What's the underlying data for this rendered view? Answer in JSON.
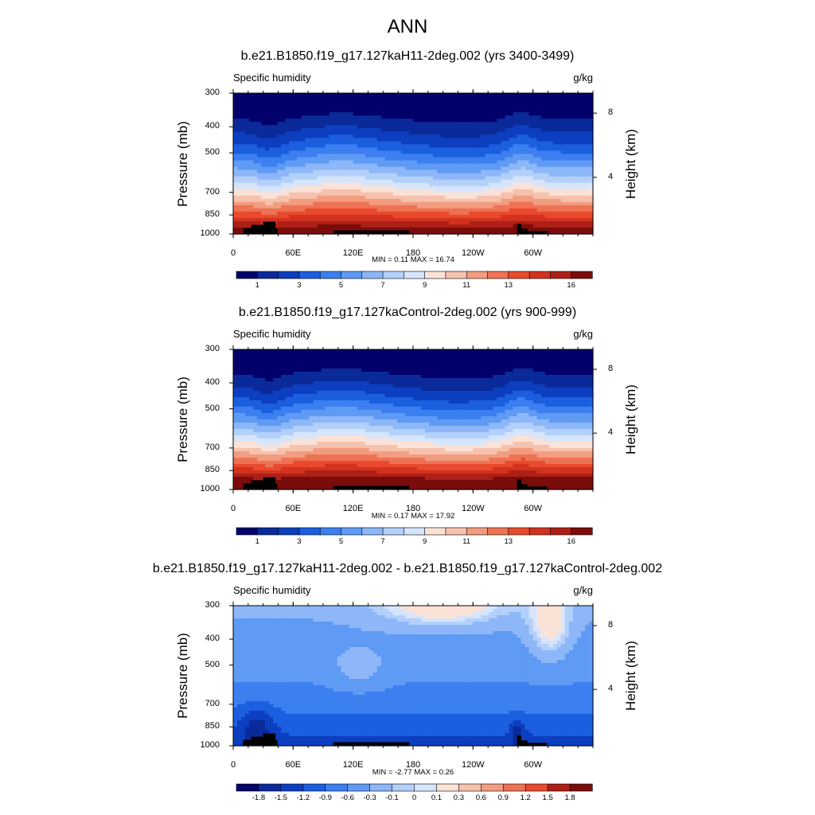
{
  "figure": {
    "title": "ANN"
  },
  "colors": {
    "abs_palette": [
      "#02006a",
      "#0a2a9a",
      "#0c3fbf",
      "#1b5fe0",
      "#3c7ff0",
      "#5f9bf5",
      "#8db7f8",
      "#b3d0fb",
      "#d6e5fc",
      "#fbe2d6",
      "#f6c2ad",
      "#f29c80",
      "#ee7254",
      "#e94a2e",
      "#d2321e",
      "#ad2017",
      "#7b0c0c"
    ],
    "diff_palette": [
      "#02006a",
      "#0a2a9a",
      "#0c3fbf",
      "#1b5fe0",
      "#3c7ff0",
      "#5f9bf5",
      "#8db7f8",
      "#b3d0fb",
      "#d6e5fc",
      "#fbe2d6",
      "#f6c2ad",
      "#f29c80",
      "#ee7254",
      "#e94a2e",
      "#ad2017",
      "#7b0c0c"
    ]
  },
  "panels": [
    {
      "title": "b.e21.B1850.f19_g17.127kaH11-2deg.002 (yrs 3400-3499)",
      "left_label": "Specific humidity",
      "right_label": "g/kg",
      "ylabel": "Pressure (mb)",
      "ylabel_right": "Height (km)",
      "stats": "MIN =   0.11  MAX =  16.74",
      "colorbar_labels": [
        "1",
        "3",
        "5",
        "7",
        "9",
        "11",
        "13",
        "16"
      ]
    },
    {
      "title": "b.e21.B1850.f19_g17.127kaControl-2deg.002 (yrs 900-999)",
      "left_label": "Specific humidity",
      "right_label": "g/kg",
      "ylabel": "Pressure (mb)",
      "ylabel_right": "Height (km)",
      "stats": "MIN =   0.17  MAX =  17.92",
      "colorbar_labels": [
        "1",
        "3",
        "5",
        "7",
        "9",
        "11",
        "13",
        "16"
      ]
    },
    {
      "title": "b.e21.B1850.f19_g17.127kaH11-2deg.002 - b.e21.B1850.f19_g17.127kaControl-2deg.002",
      "left_label": "Specific humidity",
      "right_label": "g/kg",
      "ylabel": "Pressure (mb)",
      "ylabel_right": "Height (km)",
      "stats": "MIN =  -2.77  MAX =   0.26",
      "colorbar_labels": [
        "-1.8",
        "-1.5",
        "-1.2",
        "-0.9",
        "-0.6",
        "-0.3",
        "-0.1",
        "0",
        "0.1",
        "0.3",
        "0.6",
        "0.9",
        "1.2",
        "1.5",
        "1.8"
      ]
    }
  ],
  "chart_data": [
    {
      "type": "heatmap",
      "title": "b.e21.B1850.f19_g17.127kaH11-2deg.002 (yrs 3400-3499)",
      "subtitle_left": "Specific humidity",
      "units": "g/kg",
      "xlabel": "",
      "ylabel": "Pressure (mb)",
      "ylabel_right": "Height (km)",
      "x_ticks": [
        "0",
        "60E",
        "120E",
        "180",
        "120W",
        "60W"
      ],
      "y_ticks": [
        300,
        400,
        500,
        700,
        850,
        1000
      ],
      "y_right_ticks": [
        8,
        4
      ],
      "levels": [
        1,
        2,
        3,
        4,
        5,
        6,
        7,
        8,
        9,
        10,
        11,
        12,
        13,
        14,
        15,
        16
      ],
      "min": 0.11,
      "max": 16.74
    },
    {
      "type": "heatmap",
      "title": "b.e21.B1850.f19_g17.127kaControl-2deg.002 (yrs 900-999)",
      "subtitle_left": "Specific humidity",
      "units": "g/kg",
      "xlabel": "",
      "ylabel": "Pressure (mb)",
      "ylabel_right": "Height (km)",
      "x_ticks": [
        "0",
        "60E",
        "120E",
        "180",
        "120W",
        "60W"
      ],
      "y_ticks": [
        300,
        400,
        500,
        700,
        850,
        1000
      ],
      "y_right_ticks": [
        8,
        4
      ],
      "levels": [
        1,
        2,
        3,
        4,
        5,
        6,
        7,
        8,
        9,
        10,
        11,
        12,
        13,
        14,
        15,
        16
      ],
      "min": 0.17,
      "max": 17.92
    },
    {
      "type": "heatmap",
      "title": "b.e21.B1850.f19_g17.127kaH11-2deg.002 - b.e21.B1850.f19_g17.127kaControl-2deg.002",
      "subtitle_left": "Specific humidity",
      "units": "g/kg",
      "xlabel": "",
      "ylabel": "Pressure (mb)",
      "ylabel_right": "Height (km)",
      "x_ticks": [
        "0",
        "60E",
        "120E",
        "180",
        "120W",
        "60W"
      ],
      "y_ticks": [
        300,
        400,
        500,
        700,
        850,
        1000
      ],
      "y_right_ticks": [
        8,
        4
      ],
      "levels": [
        -1.8,
        -1.5,
        -1.2,
        -0.9,
        -0.6,
        -0.3,
        -0.1,
        0,
        0.1,
        0.3,
        0.6,
        0.9,
        1.2,
        1.5,
        1.8
      ],
      "min": -2.77,
      "max": 0.26
    }
  ]
}
